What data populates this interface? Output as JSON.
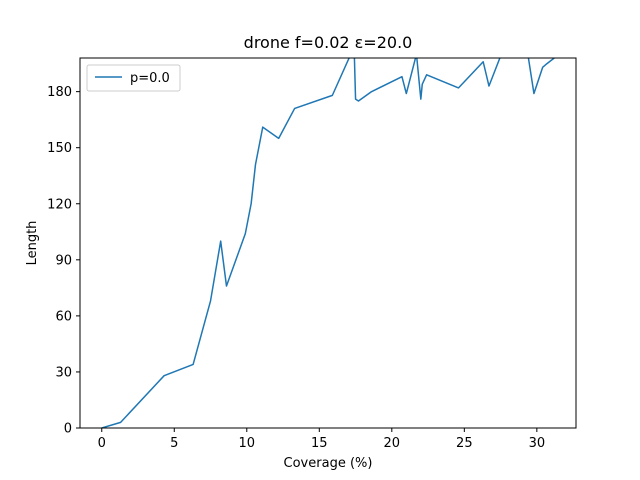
{
  "chart_data": {
    "type": "line",
    "title": "drone f=0.02 ε=20.0",
    "xlabel": "Coverage (%)",
    "ylabel": "Length",
    "xlim": [
      -1.5,
      32.7
    ],
    "ylim": [
      0,
      198
    ],
    "xticks": [
      0,
      5,
      10,
      15,
      20,
      25,
      30
    ],
    "yticks": [
      0,
      30,
      60,
      90,
      120,
      150,
      180
    ],
    "grid": false,
    "legend_position": "upper-left",
    "series": [
      {
        "name": "p=0.0",
        "color": "#1f77b4",
        "x": [
          0.0,
          1.3,
          4.3,
          6.3,
          7.5,
          8.2,
          8.6,
          9.9,
          10.3,
          10.6,
          11.1,
          12.2,
          13.3,
          15.9,
          17.4,
          17.5,
          17.7,
          18.6,
          20.7,
          21.0,
          21.7,
          22.0,
          22.1,
          22.4,
          24.6,
          26.3,
          26.7,
          27.6,
          28.9,
          29.0,
          29.3,
          29.8,
          30.4,
          30.7,
          31.2
        ],
        "y": [
          0,
          3,
          28,
          34,
          68,
          100,
          76,
          104,
          120,
          141,
          161,
          155,
          171,
          178,
          204,
          176,
          175,
          180,
          188,
          179,
          200,
          176,
          184,
          189,
          182,
          196,
          183,
          201,
          206,
          199,
          204,
          179,
          193,
          195,
          198
        ]
      }
    ]
  }
}
